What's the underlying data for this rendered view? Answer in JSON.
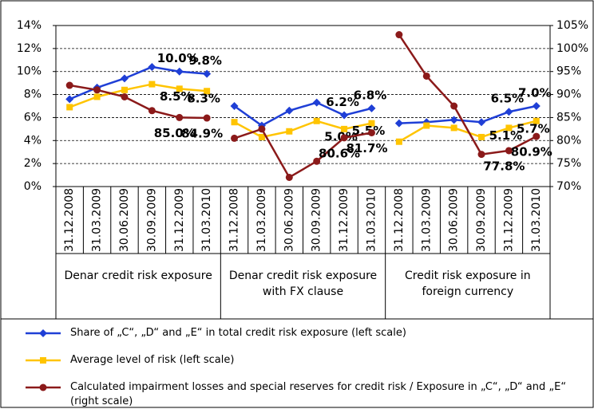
{
  "chart_data": {
    "type": "line",
    "groups": [
      {
        "name": "Denar credit risk exposure",
        "categories": [
          "31.12.2008",
          "31.03.2009",
          "30.06.2009",
          "30.09.2009",
          "31.12.2009",
          "31.03.2010"
        ]
      },
      {
        "name": "Denar credit risk exposure with FX clause",
        "categories": [
          "31.12.2008",
          "31.03.2009",
          "30.06.2009",
          "30.09.2009",
          "31.12.2009",
          "31.03.2010"
        ]
      },
      {
        "name": "Credit risk exposure in foreign currency",
        "categories": [
          "31.12.2008",
          "31.03.2009",
          "30.06.2009",
          "30.09.2009",
          "31.12.2009",
          "31.03.2010"
        ]
      }
    ],
    "series": [
      {
        "name": "Share of „C“, „D“ and „E“ in total credit risk exposure (left scale)",
        "color": "#1f3fd6",
        "marker": "diamond",
        "values": [
          [
            7.6,
            8.6,
            9.4,
            10.4,
            10.0,
            9.8
          ],
          [
            7.0,
            5.3,
            6.6,
            7.3,
            6.2,
            6.8
          ],
          [
            5.5,
            5.6,
            5.8,
            5.6,
            6.5,
            7.0
          ]
        ],
        "value_labels": [
          [
            null,
            null,
            null,
            null,
            "10.0%",
            "9.8%"
          ],
          [
            null,
            null,
            null,
            null,
            "6.2%",
            "6.8%"
          ],
          [
            null,
            null,
            null,
            null,
            "6.5%",
            "7.0%"
          ]
        ]
      },
      {
        "name": "Average level of risk (left scale)",
        "color": "#ffc400",
        "marker": "square",
        "values": [
          [
            6.9,
            7.8,
            8.4,
            8.9,
            8.5,
            8.3
          ],
          [
            5.6,
            4.3,
            4.8,
            5.7,
            5.0,
            5.5
          ],
          [
            3.9,
            5.3,
            5.1,
            4.3,
            5.1,
            5.7
          ]
        ],
        "value_labels": [
          [
            null,
            null,
            null,
            null,
            "8.5%",
            "8.3%"
          ],
          [
            null,
            null,
            null,
            null,
            "5.0%",
            "5.5%"
          ],
          [
            null,
            null,
            null,
            null,
            "5.1%",
            "5.7%"
          ]
        ]
      },
      {
        "name": "Calculated impairment losses and special reserves for credit risk / Exposure in „C“, „D“ and „E“ (right scale)",
        "color": "#8b1a1a",
        "marker": "circle",
        "axis": "y2",
        "values": [
          [
            92.0,
            91.0,
            89.5,
            86.5,
            85.0,
            84.9
          ],
          [
            80.5,
            82.5,
            72.0,
            75.5,
            80.6,
            81.7
          ],
          [
            103.0,
            94.0,
            87.5,
            77.0,
            77.8,
            80.9
          ]
        ],
        "value_labels": [
          [
            null,
            null,
            null,
            null,
            "85.0%",
            "84.9%"
          ],
          [
            null,
            null,
            null,
            null,
            "80.6%",
            "81.7%"
          ],
          [
            null,
            null,
            null,
            null,
            "77.8%",
            "80.9%"
          ]
        ]
      }
    ],
    "ylim": [
      0,
      14
    ],
    "yticks": [
      {
        "value": 0,
        "label": "0%"
      },
      {
        "value": 2,
        "label": "2%"
      },
      {
        "value": 4,
        "label": "4%"
      },
      {
        "value": 6,
        "label": "6%"
      },
      {
        "value": 8,
        "label": "8%"
      },
      {
        "value": 10,
        "label": "10%"
      },
      {
        "value": 12,
        "label": "12%"
      },
      {
        "value": 14,
        "label": "14%"
      }
    ],
    "y2lim": [
      70,
      105
    ],
    "y2ticks": [
      {
        "value": 70,
        "label": "70%"
      },
      {
        "value": 75,
        "label": "75%"
      },
      {
        "value": 80,
        "label": "80%"
      },
      {
        "value": 85,
        "label": "85%"
      },
      {
        "value": 90,
        "label": "90%"
      },
      {
        "value": 95,
        "label": "95%"
      },
      {
        "value": 100,
        "label": "100%"
      },
      {
        "value": 105,
        "label": "105%"
      }
    ],
    "grid": true
  }
}
